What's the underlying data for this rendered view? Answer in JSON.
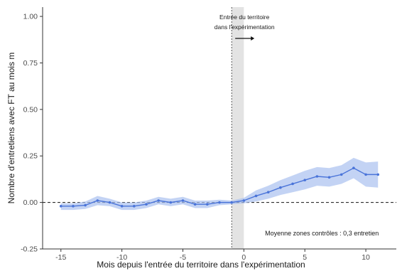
{
  "chart_data": {
    "type": "line",
    "title": "",
    "xlabel": "Mois depuis l'entrée du territoire dans l'expérimentation",
    "ylabel": "Nombre d'entretiens avec FT au mois m",
    "xlim": [
      -16.5,
      12.5
    ],
    "ylim": [
      -0.25,
      1.05
    ],
    "x_ticks": [
      -15,
      -10,
      -5,
      0,
      5,
      10
    ],
    "x_tick_labels": [
      "-15",
      "-10",
      "-5",
      "0",
      "5",
      "10"
    ],
    "y_ticks": [
      -0.25,
      0.0,
      0.25,
      0.5,
      0.75,
      1.0
    ],
    "y_tick_labels": [
      "-0.25",
      "0.00",
      "0.25",
      "0.50",
      "0.75",
      "1.00"
    ],
    "reference_hline": 0.0,
    "event_vline": -1,
    "shaded_region": [
      -1,
      0
    ],
    "annotation": {
      "line1": "Entrée du territoire",
      "line2": "dans l'expérimentation"
    },
    "note": "Moyenne zones contrôles : 0,3 entretien",
    "colors": {
      "line": "#4a74d9",
      "band": "#aac0ef",
      "shade": "#dcdcdc"
    },
    "series": [
      {
        "x": [
          -15,
          -14,
          -13,
          -12,
          -11,
          -10,
          -9,
          -8,
          -7,
          -6,
          -5,
          -4,
          -3,
          -2,
          -1,
          0,
          1,
          2,
          3,
          4,
          5,
          6,
          7,
          8,
          9,
          10,
          11
        ],
        "values": [
          -0.02,
          -0.02,
          -0.015,
          0.01,
          0.0,
          -0.02,
          -0.02,
          -0.01,
          0.01,
          0.0,
          0.01,
          -0.01,
          -0.01,
          0.0,
          0.0,
          0.01,
          0.035,
          0.055,
          0.08,
          0.1,
          0.12,
          0.14,
          0.135,
          0.15,
          0.185,
          0.15,
          0.15
        ],
        "lower": [
          -0.04,
          -0.04,
          -0.035,
          -0.015,
          -0.02,
          -0.04,
          -0.04,
          -0.03,
          -0.01,
          -0.02,
          -0.01,
          -0.03,
          -0.03,
          -0.015,
          -0.01,
          -0.005,
          0.005,
          0.02,
          0.04,
          0.055,
          0.07,
          0.09,
          0.085,
          0.1,
          0.13,
          0.085,
          0.08
        ],
        "upper": [
          -0.005,
          -0.005,
          0.005,
          0.035,
          0.02,
          0.0,
          0.0,
          0.01,
          0.03,
          0.02,
          0.03,
          0.01,
          0.01,
          0.015,
          0.01,
          0.025,
          0.065,
          0.09,
          0.12,
          0.145,
          0.17,
          0.19,
          0.185,
          0.2,
          0.24,
          0.215,
          0.22
        ]
      }
    ]
  }
}
